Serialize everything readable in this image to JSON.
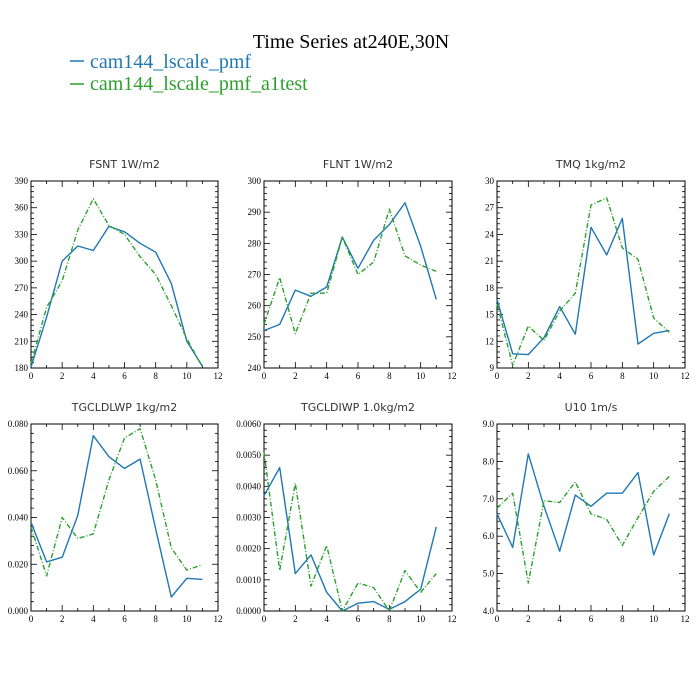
{
  "title": "Time Series at240E,30N",
  "legend": [
    {
      "name": "cam144_lscale_pmf",
      "color": "#1f77b4",
      "dash": "solid"
    },
    {
      "name": "cam144_lscale_pmf_a1test",
      "color": "#2ca02c",
      "dash": "dashdot"
    }
  ],
  "chart_data": [
    {
      "type": "line",
      "title": "FSNT  1W/m2",
      "x": [
        0,
        1,
        2,
        3,
        4,
        5,
        6,
        7,
        8,
        9,
        10,
        11
      ],
      "xlim": [
        0,
        12
      ],
      "xticks": [
        "0",
        "2",
        "4",
        "6",
        "8",
        "10",
        "12"
      ],
      "ylim": [
        180,
        390
      ],
      "yticks": [
        "180",
        "210",
        "240",
        "270",
        "300",
        "330",
        "360",
        "390"
      ],
      "series": [
        {
          "name": "cam144_lscale_pmf",
          "values": [
            181,
            237,
            300,
            317,
            312,
            339,
            333,
            320,
            310,
            275,
            210,
            182
          ]
        },
        {
          "name": "cam144_lscale_pmf_a1test",
          "values": [
            185,
            248,
            278,
            335,
            370,
            340,
            330,
            305,
            285,
            250,
            213,
            181
          ]
        }
      ]
    },
    {
      "type": "line",
      "title": "FLNT  1W/m2",
      "x": [
        0,
        1,
        2,
        3,
        4,
        5,
        6,
        7,
        8,
        9,
        10,
        11
      ],
      "xlim": [
        0,
        12
      ],
      "xticks": [
        "0",
        "2",
        "4",
        "6",
        "8",
        "10",
        "12"
      ],
      "ylim": [
        240,
        300
      ],
      "yticks": [
        "240",
        "250",
        "260",
        "270",
        "280",
        "290",
        "300"
      ],
      "series": [
        {
          "name": "cam144_lscale_pmf",
          "values": [
            252,
            254,
            265,
            263,
            266,
            282,
            272,
            281,
            286,
            293,
            279,
            262
          ]
        },
        {
          "name": "cam144_lscale_pmf_a1test",
          "values": [
            254,
            269,
            251,
            264,
            264,
            282,
            270,
            274,
            291,
            276,
            273,
            271
          ]
        }
      ]
    },
    {
      "type": "line",
      "title": "TMQ  1kg/m2",
      "x": [
        0,
        1,
        2,
        3,
        4,
        5,
        6,
        7,
        8,
        9,
        10,
        11
      ],
      "xlim": [
        0,
        12
      ],
      "xticks": [
        "0",
        "2",
        "4",
        "6",
        "8",
        "10",
        "12"
      ],
      "ylim": [
        9,
        30
      ],
      "yticks": [
        "9",
        "12",
        "15",
        "18",
        "21",
        "24",
        "27",
        "30"
      ],
      "series": [
        {
          "name": "cam144_lscale_pmf",
          "values": [
            16.7,
            10.6,
            10.5,
            12.4,
            15.9,
            12.8,
            24.8,
            21.7,
            25.8,
            11.7,
            12.9,
            13.2
          ]
        },
        {
          "name": "cam144_lscale_pmf_a1test",
          "values": [
            16.2,
            9.3,
            13.7,
            12.1,
            15.4,
            17.4,
            27.3,
            28.1,
            22.5,
            21.2,
            14.6,
            13.0
          ]
        }
      ]
    },
    {
      "type": "line",
      "title": "TGCLDLWP  1kg/m2",
      "x": [
        0,
        1,
        2,
        3,
        4,
        5,
        6,
        7,
        8,
        9,
        10,
        11
      ],
      "xlim": [
        0,
        12
      ],
      "xticks": [
        "0",
        "2",
        "4",
        "6",
        "8",
        "10",
        "12"
      ],
      "ylim": [
        0.0,
        0.08
      ],
      "yticks": [
        "0.000",
        "0.020",
        "0.040",
        "0.060",
        "0.080"
      ],
      "series": [
        {
          "name": "cam144_lscale_pmf",
          "values": [
            0.038,
            0.021,
            0.023,
            0.041,
            0.075,
            0.066,
            0.061,
            0.065,
            0.035,
            0.006,
            0.014,
            0.0135
          ]
        },
        {
          "name": "cam144_lscale_pmf_a1test",
          "values": [
            0.036,
            0.015,
            0.04,
            0.031,
            0.033,
            0.056,
            0.074,
            0.078,
            0.056,
            0.027,
            0.0175,
            0.0198
          ]
        }
      ]
    },
    {
      "type": "line",
      "title": "TGCLDIWP  1.0kg/m2",
      "x": [
        0,
        1,
        2,
        3,
        4,
        5,
        6,
        7,
        8,
        9,
        10,
        11
      ],
      "xlim": [
        0,
        12
      ],
      "xticks": [
        "0",
        "2",
        "4",
        "6",
        "8",
        "10",
        "12"
      ],
      "ylim": [
        0.0,
        0.006
      ],
      "yticks": [
        "0.0000",
        "0.0010",
        "0.0020",
        "0.0030",
        "0.0040",
        "0.0050",
        "0.0060"
      ],
      "series": [
        {
          "name": "cam144_lscale_pmf",
          "values": [
            0.0037,
            0.0046,
            0.0012,
            0.0018,
            0.0006,
            0.0,
            0.00025,
            0.0003,
            5e-05,
            0.0003,
            0.0007,
            0.0027
          ]
        },
        {
          "name": "cam144_lscale_pmf_a1test",
          "values": [
            0.0051,
            0.0013,
            0.0041,
            0.0008,
            0.0021,
            0.0,
            0.0009,
            0.00075,
            0.0,
            0.0013,
            0.0006,
            0.0012
          ]
        }
      ]
    },
    {
      "type": "line",
      "title": "U10  1m/s",
      "x": [
        0,
        1,
        2,
        3,
        4,
        5,
        6,
        7,
        8,
        9,
        10,
        11
      ],
      "xlim": [
        0,
        12
      ],
      "xticks": [
        "0",
        "2",
        "4",
        "6",
        "8",
        "10",
        "12"
      ],
      "ylim": [
        4.0,
        9.0
      ],
      "yticks": [
        "4.0",
        "5.0",
        "6.0",
        "7.0",
        "8.0",
        "9.0"
      ],
      "series": [
        {
          "name": "cam144_lscale_pmf",
          "values": [
            6.6,
            5.7,
            8.2,
            6.8,
            5.6,
            7.1,
            6.8,
            7.15,
            7.15,
            7.7,
            5.5,
            6.6
          ]
        },
        {
          "name": "cam144_lscale_pmf_a1test",
          "values": [
            6.75,
            7.15,
            4.75,
            6.95,
            6.9,
            7.45,
            6.6,
            6.45,
            5.75,
            6.5,
            7.2,
            7.6
          ]
        }
      ]
    }
  ]
}
